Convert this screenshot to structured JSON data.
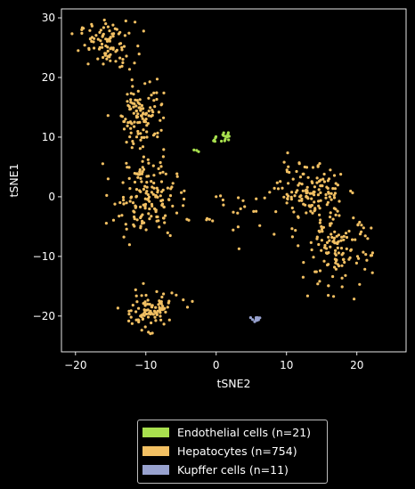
{
  "chart_data": {
    "type": "scatter",
    "xlabel": "tSNE2",
    "ylabel": "tSNE1",
    "xlim": [
      -22,
      27
    ],
    "ylim": [
      -26,
      31.5
    ],
    "xticks": [
      -20,
      -10,
      0,
      10,
      20
    ],
    "yticks": [
      -20,
      -10,
      0,
      10,
      20,
      30
    ],
    "xtick_labels": [
      "−20",
      "−10",
      "0",
      "10",
      "20"
    ],
    "ytick_labels": [
      "−20",
      "−10",
      "0",
      "10",
      "20",
      "30"
    ],
    "legend_position": "bottom-center-outside",
    "series": [
      {
        "name": "Endothelial cells (n=21)",
        "color": "#a8e04e",
        "clusters": [
          {
            "center": [
              1.5,
              10.0
            ],
            "spread": [
              0.8,
              0.6
            ],
            "count": 13
          },
          {
            "center": [
              -0.4,
              9.4
            ],
            "spread": [
              0.5,
              0.3
            ],
            "count": 5
          },
          {
            "center": [
              -3.0,
              7.8
            ],
            "spread": [
              0.3,
              0.3
            ],
            "count": 3
          }
        ]
      },
      {
        "name": "Hepatocytes (n=754)",
        "color": "#f2c063",
        "clusters": [
          {
            "center": [
              -15.5,
              25.5
            ],
            "spread": [
              2.6,
              2.6
            ],
            "count": 95
          },
          {
            "center": [
              -10.5,
              14.0
            ],
            "spread": [
              2.0,
              3.8
            ],
            "count": 110
          },
          {
            "center": [
              -10.0,
              0.0
            ],
            "spread": [
              3.0,
              4.5
            ],
            "count": 165
          },
          {
            "center": [
              -9.5,
              -19.0
            ],
            "spread": [
              2.8,
              2.0
            ],
            "count": 100
          },
          {
            "center": [
              13.5,
              0.5
            ],
            "spread": [
              3.0,
              3.2
            ],
            "count": 135
          },
          {
            "center": [
              17.0,
              -9.0
            ],
            "spread": [
              3.3,
              4.2
            ],
            "count": 125
          },
          {
            "center": [
              4.0,
              -2.5
            ],
            "spread": [
              3.0,
              2.5
            ],
            "count": 20
          },
          {
            "center": [
              -1.0,
              -3.8
            ],
            "spread": [
              0.5,
              0.2
            ],
            "count": 4
          }
        ]
      },
      {
        "name": "Kupffer cells (n=11)",
        "color": "#98a2cf",
        "clusters": [
          {
            "center": [
              5.8,
              -20.5
            ],
            "spread": [
              0.5,
              0.4
            ],
            "count": 11
          }
        ]
      }
    ]
  },
  "legend": {
    "items": [
      {
        "label": "Endothelial cells (n=21)",
        "color": "#a8e04e"
      },
      {
        "label": "Hepatocytes (n=754)",
        "color": "#f2c063"
      },
      {
        "label": "Kupffer cells (n=11)",
        "color": "#98a2cf"
      }
    ]
  }
}
